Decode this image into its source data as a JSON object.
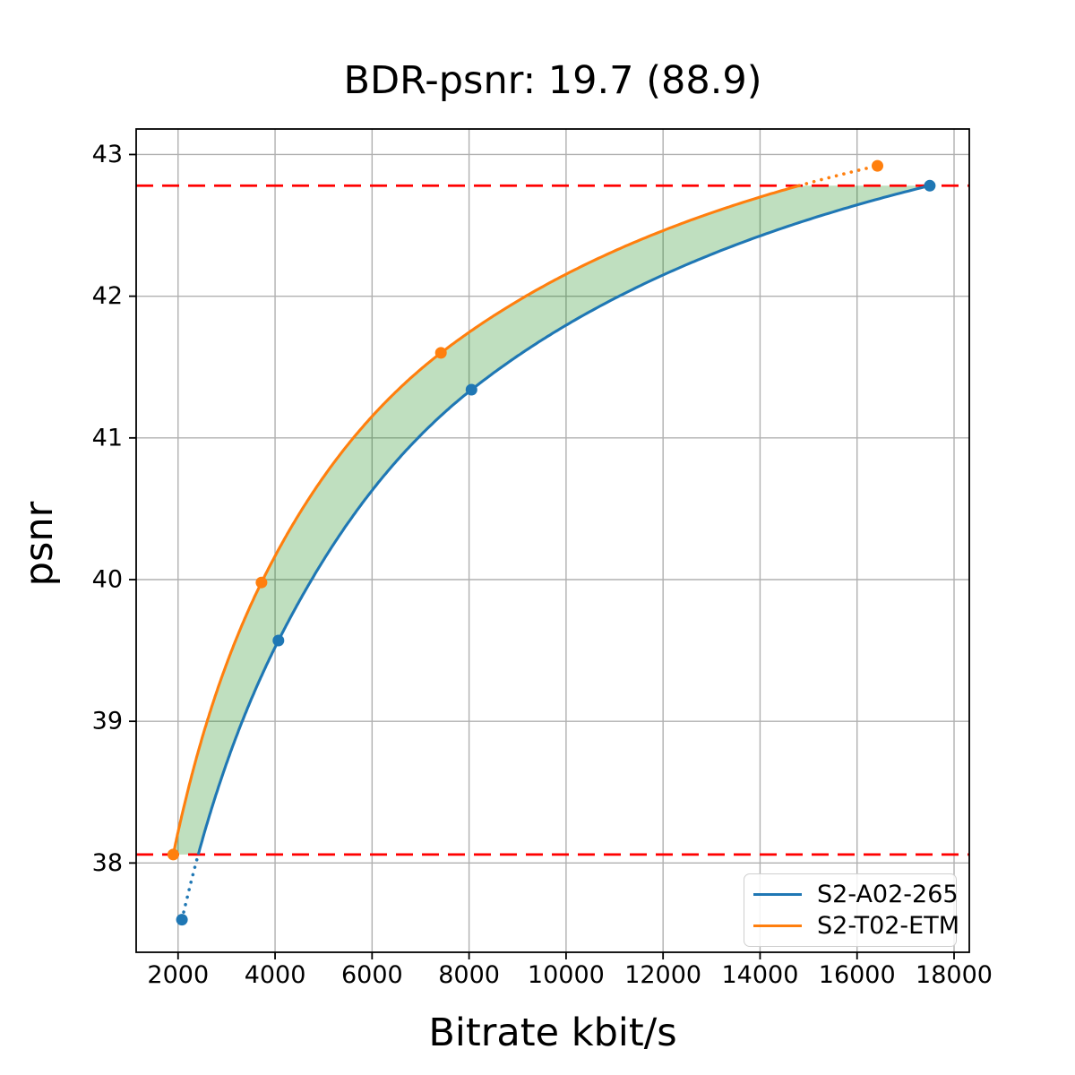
{
  "title": "BDR-psnr: 19.7 (88.9)",
  "chart_data": {
    "type": "line",
    "title": "BDR-psnr: 19.7 (88.9)",
    "xlabel": "Bitrate kbit/s",
    "ylabel": "psnr",
    "xlim": [
      1136,
      18314
    ],
    "ylim": [
      37.37,
      43.18
    ],
    "xticks": [
      2000,
      4000,
      6000,
      8000,
      10000,
      12000,
      14000,
      16000,
      18000
    ],
    "yticks": [
      38,
      39,
      40,
      41,
      42,
      43
    ],
    "grid": true,
    "grid_color": "#b0b0b0",
    "spine_color": "#000000",
    "legend_position": "lower right",
    "interpolation": "pchip-log-x",
    "series": [
      {
        "name": "S2-A02-265",
        "color": "#1f77b4",
        "marker": "o",
        "x": [
          2080,
          4070,
          8050,
          17500
        ],
        "y": [
          37.6,
          39.57,
          41.34,
          42.78
        ]
      },
      {
        "name": "S2-T02-ETM",
        "color": "#ff7f0e",
        "marker": "o",
        "x": [
          1900,
          3720,
          7420,
          16420
        ],
        "y": [
          38.06,
          39.98,
          41.6,
          42.92
        ]
      }
    ],
    "hlines": {
      "values": [
        38.06,
        42.78
      ],
      "color": "#ff0000",
      "style": "dashed"
    },
    "fill_between": {
      "description": "area between the two curves over the overlapping psnr range",
      "y_range": [
        38.06,
        42.78
      ],
      "color": "#008000",
      "alpha": 0.25
    }
  }
}
